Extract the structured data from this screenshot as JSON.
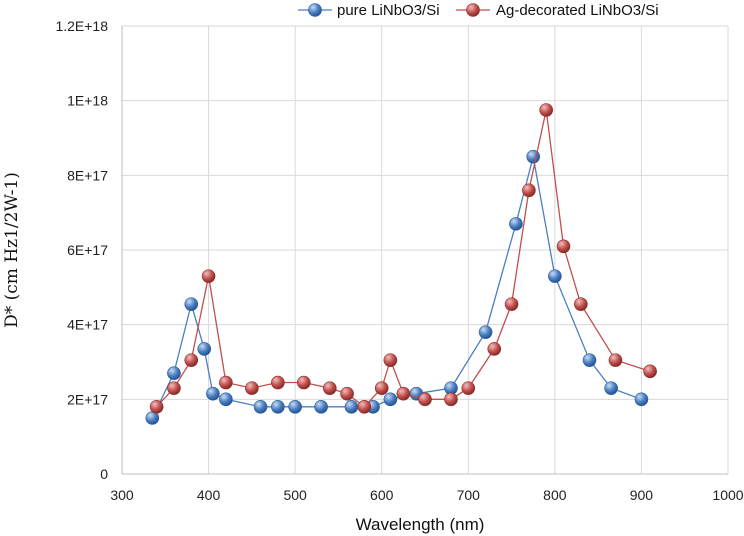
{
  "chart_data": {
    "type": "line",
    "xlabel": "Wavelength (nm)",
    "ylabel": "D* (cm Hz1/2W-1)",
    "xlim": [
      300,
      1000
    ],
    "ylim": [
      0,
      1.2e+18
    ],
    "x_ticks": [
      "300",
      "400",
      "500",
      "600",
      "700",
      "800",
      "900",
      "1000"
    ],
    "y_ticks": [
      "0",
      "2E+17",
      "4E+17",
      "6E+17",
      "8E+17",
      "1E+18",
      "1.2E+18"
    ],
    "x_tick_values": [
      300,
      400,
      500,
      600,
      700,
      800,
      900,
      1000
    ],
    "y_tick_values": [
      0,
      2e+17,
      4e+17,
      6e+17,
      8e+17,
      1e+18,
      1.2e+18
    ],
    "grid": true,
    "legend_position": "top-right",
    "series": [
      {
        "name": "pure LiNbO3/Si",
        "color": "#4a7fc1",
        "points": [
          [
            335,
            1.5e+17
          ],
          [
            360,
            2.7e+17
          ],
          [
            380,
            4.55e+17
          ],
          [
            395,
            3.35e+17
          ],
          [
            405,
            2.15e+17
          ],
          [
            420,
            2e+17
          ],
          [
            460,
            1.8e+17
          ],
          [
            480,
            1.8e+17
          ],
          [
            500,
            1.8e+17
          ],
          [
            530,
            1.8e+17
          ],
          [
            565,
            1.8e+17
          ],
          [
            590,
            1.8e+17
          ],
          [
            610,
            2e+17
          ],
          [
            640,
            2.15e+17
          ],
          [
            680,
            2.3e+17
          ],
          [
            720,
            3.8e+17
          ],
          [
            755,
            6.7e+17
          ],
          [
            775,
            8.5e+17
          ],
          [
            800,
            5.3e+17
          ],
          [
            840,
            3.05e+17
          ],
          [
            865,
            2.3e+17
          ],
          [
            900,
            2e+17
          ]
        ]
      },
      {
        "name": "Ag-decorated LiNbO3/Si",
        "color": "#c0504d",
        "points": [
          [
            340,
            1.8e+17
          ],
          [
            360,
            2.3e+17
          ],
          [
            380,
            3.05e+17
          ],
          [
            400,
            5.3e+17
          ],
          [
            420,
            2.45e+17
          ],
          [
            450,
            2.3e+17
          ],
          [
            480,
            2.45e+17
          ],
          [
            510,
            2.45e+17
          ],
          [
            540,
            2.3e+17
          ],
          [
            560,
            2.15e+17
          ],
          [
            580,
            1.8e+17
          ],
          [
            600,
            2.3e+17
          ],
          [
            610,
            3.05e+17
          ],
          [
            625,
            2.15e+17
          ],
          [
            650,
            2e+17
          ],
          [
            680,
            2e+17
          ],
          [
            700,
            2.3e+17
          ],
          [
            730,
            3.35e+17
          ],
          [
            750,
            4.55e+17
          ],
          [
            770,
            7.6e+17
          ],
          [
            790,
            9.75e+17
          ],
          [
            810,
            6.1e+17
          ],
          [
            830,
            4.55e+17
          ],
          [
            870,
            3.05e+17
          ],
          [
            910,
            2.75e+17
          ]
        ]
      }
    ]
  }
}
